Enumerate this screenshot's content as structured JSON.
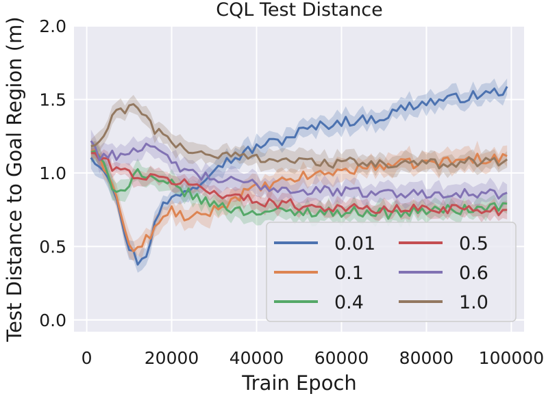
{
  "chart_data": {
    "type": "line",
    "title": "CQL Test Distance",
    "xlabel": "Train Epoch",
    "ylabel": "Test Distance to Goal Region (m)",
    "xlim": [
      -3000,
      103000
    ],
    "ylim": [
      -0.08,
      2.0
    ],
    "x_ticks": [
      0,
      20000,
      40000,
      60000,
      80000,
      100000
    ],
    "y_ticks": [
      0.0,
      0.5,
      1.0,
      1.5,
      2.0
    ],
    "x_tick_labels": [
      "0",
      "20000",
      "40000",
      "60000",
      "80000",
      "100000"
    ],
    "y_tick_labels": [
      "0.0",
      "0.5",
      "1.0",
      "1.5",
      "2.0"
    ],
    "grid": true,
    "background": "#eaeaf2",
    "legend_position": "lower-right",
    "legend_columns": 2,
    "series_keypoints": [
      {
        "name": "0.01",
        "color": "#4c72b0",
        "band": 0.06,
        "points": [
          [
            1000,
            1.12
          ],
          [
            5000,
            1.0
          ],
          [
            7000,
            0.85
          ],
          [
            9000,
            0.55
          ],
          [
            12000,
            0.4
          ],
          [
            14000,
            0.45
          ],
          [
            16000,
            0.65
          ],
          [
            18000,
            0.78
          ],
          [
            22000,
            0.87
          ],
          [
            26000,
            0.92
          ],
          [
            30000,
            1.05
          ],
          [
            35000,
            1.1
          ],
          [
            38000,
            1.15
          ],
          [
            42000,
            1.2
          ],
          [
            46000,
            1.22
          ],
          [
            50000,
            1.28
          ],
          [
            55000,
            1.32
          ],
          [
            60000,
            1.35
          ],
          [
            65000,
            1.36
          ],
          [
            70000,
            1.38
          ],
          [
            75000,
            1.45
          ],
          [
            80000,
            1.48
          ],
          [
            85000,
            1.5
          ],
          [
            90000,
            1.52
          ],
          [
            95000,
            1.54
          ],
          [
            99000,
            1.57
          ]
        ]
      },
      {
        "name": "0.1",
        "color": "#dd8452",
        "band": 0.07,
        "points": [
          [
            1000,
            1.16
          ],
          [
            4000,
            1.05
          ],
          [
            6000,
            0.95
          ],
          [
            8000,
            0.72
          ],
          [
            10000,
            0.5
          ],
          [
            12000,
            0.47
          ],
          [
            14000,
            0.55
          ],
          [
            17000,
            0.65
          ],
          [
            20000,
            0.75
          ],
          [
            24000,
            0.68
          ],
          [
            28000,
            0.72
          ],
          [
            32000,
            0.78
          ],
          [
            38000,
            0.88
          ],
          [
            44000,
            0.92
          ],
          [
            50000,
            0.97
          ],
          [
            56000,
            1.0
          ],
          [
            62000,
            1.02
          ],
          [
            68000,
            1.05
          ],
          [
            74000,
            1.06
          ],
          [
            80000,
            1.07
          ],
          [
            86000,
            1.08
          ],
          [
            92000,
            1.1
          ],
          [
            99000,
            1.1
          ]
        ]
      },
      {
        "name": "0.4",
        "color": "#55a868",
        "band": 0.06,
        "points": [
          [
            1000,
            1.15
          ],
          [
            3000,
            1.1
          ],
          [
            6000,
            0.92
          ],
          [
            8000,
            0.88
          ],
          [
            10000,
            0.93
          ],
          [
            12000,
            1.02
          ],
          [
            14000,
            0.96
          ],
          [
            17000,
            0.93
          ],
          [
            20000,
            0.92
          ],
          [
            24000,
            0.86
          ],
          [
            28000,
            0.8
          ],
          [
            32000,
            0.78
          ],
          [
            36000,
            0.74
          ],
          [
            42000,
            0.74
          ],
          [
            48000,
            0.73
          ],
          [
            54000,
            0.74
          ],
          [
            60000,
            0.73
          ],
          [
            66000,
            0.74
          ],
          [
            72000,
            0.72
          ],
          [
            78000,
            0.74
          ],
          [
            84000,
            0.75
          ],
          [
            90000,
            0.75
          ],
          [
            96000,
            0.77
          ],
          [
            99000,
            0.78
          ]
        ]
      },
      {
        "name": "0.5",
        "color": "#c44e52",
        "band": 0.05,
        "points": [
          [
            1000,
            1.14
          ],
          [
            4000,
            1.08
          ],
          [
            8000,
            1.02
          ],
          [
            12000,
            0.98
          ],
          [
            16000,
            0.96
          ],
          [
            20000,
            0.95
          ],
          [
            24000,
            0.93
          ],
          [
            28000,
            0.88
          ],
          [
            32000,
            0.86
          ],
          [
            38000,
            0.82
          ],
          [
            44000,
            0.8
          ],
          [
            50000,
            0.78
          ],
          [
            56000,
            0.77
          ],
          [
            62000,
            0.76
          ],
          [
            68000,
            0.75
          ],
          [
            74000,
            0.75
          ],
          [
            80000,
            0.76
          ],
          [
            86000,
            0.76
          ],
          [
            92000,
            0.75
          ],
          [
            99000,
            0.74
          ]
        ]
      },
      {
        "name": "0.6",
        "color": "#8172b3",
        "band": 0.07,
        "points": [
          [
            1000,
            1.22
          ],
          [
            3000,
            1.12
          ],
          [
            6000,
            1.12
          ],
          [
            9000,
            1.13
          ],
          [
            12000,
            1.18
          ],
          [
            15000,
            1.16
          ],
          [
            18000,
            1.12
          ],
          [
            21000,
            1.06
          ],
          [
            24000,
            1.0
          ],
          [
            28000,
            0.97
          ],
          [
            32000,
            0.95
          ],
          [
            38000,
            0.93
          ],
          [
            44000,
            0.9
          ],
          [
            50000,
            0.88
          ],
          [
            56000,
            0.88
          ],
          [
            62000,
            0.87
          ],
          [
            68000,
            0.87
          ],
          [
            74000,
            0.86
          ],
          [
            80000,
            0.86
          ],
          [
            86000,
            0.87
          ],
          [
            92000,
            0.85
          ],
          [
            99000,
            0.86
          ]
        ]
      },
      {
        "name": "1.0",
        "color": "#937860",
        "band": 0.06,
        "points": [
          [
            1000,
            1.18
          ],
          [
            3000,
            1.2
          ],
          [
            5000,
            1.3
          ],
          [
            7000,
            1.43
          ],
          [
            10000,
            1.44
          ],
          [
            13000,
            1.42
          ],
          [
            16000,
            1.3
          ],
          [
            19000,
            1.22
          ],
          [
            22000,
            1.18
          ],
          [
            26000,
            1.14
          ],
          [
            30000,
            1.12
          ],
          [
            34000,
            1.12
          ],
          [
            38000,
            1.11
          ],
          [
            44000,
            1.1
          ],
          [
            50000,
            1.08
          ],
          [
            56000,
            1.07
          ],
          [
            62000,
            1.07
          ],
          [
            68000,
            1.06
          ],
          [
            74000,
            1.06
          ],
          [
            80000,
            1.06
          ],
          [
            86000,
            1.07
          ],
          [
            92000,
            1.08
          ],
          [
            96000,
            1.08
          ],
          [
            99000,
            1.09
          ]
        ]
      }
    ]
  }
}
